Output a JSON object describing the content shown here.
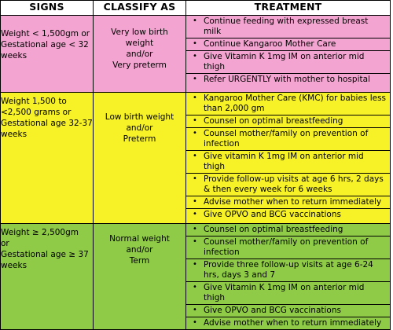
{
  "headers": {
    "signs": "SIGNS",
    "classify": "CLASSIFY AS",
    "treatment": "TREATMENT"
  },
  "rows": [
    {
      "color": "#f4a4d0",
      "signs": [
        "Weight < 1,500gm or",
        "Gestational age  < 32",
        "weeks"
      ],
      "classify": [
        "Very low birth",
        "weight",
        "and/or",
        "Very preterm"
      ],
      "treatment": [
        "Continue feeding with expressed breast milk",
        "Continue Kangaroo Mother Care",
        "Give Vitamin K 1mg IM on anterior mid thigh",
        "Refer URGENTLY with mother to hospital"
      ]
    },
    {
      "color": "#f7f227",
      "signs": [
        "Weight 1,500 to",
        "<2,500 grams or",
        "Gestational age 32-37",
        "weeks"
      ],
      "classify": [
        "Low birth weight",
        "and/or",
        "Preterm"
      ],
      "treatment": [
        "Kangaroo Mother Care (KMC)  for babies less than 2,000 gm",
        "Counsel on optimal breastfeeding",
        "Counsel mother/family on prevention of infection",
        "Give vitamin K 1mg IM on anterior mid thigh",
        "Provide follow-up visits at age 6 hrs, 2 days & then every week for 6 weeks",
        "Advise mother when to return immediately",
        "Give OPVO and BCG vaccinations"
      ]
    },
    {
      "color": "#8fcb47",
      "signs": [
        "Weight  ≥ 2,500gm",
        "or",
        "Gestational age  ≥ 37",
        "weeks"
      ],
      "classify": [
        "Normal weight",
        "and/or",
        "Term"
      ],
      "treatment": [
        "Counsel on optimal breastfeeding",
        "Counsel mother/family on prevention of infection",
        "Provide three follow-up visits at age 6-24 hrs, days 3 and 7",
        "Give Vitamin K 1mg IM on anterior mid thigh",
        "Give OPVO and BCG vaccinations",
        "Advise mother when to return immediately"
      ]
    }
  ]
}
